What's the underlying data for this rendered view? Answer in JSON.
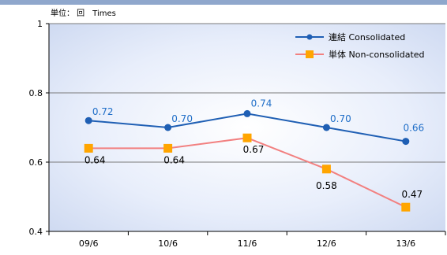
{
  "unit_label": "単位： 回　Times",
  "chart_data": {
    "type": "line",
    "categories": [
      "09/6",
      "10/6",
      "11/6",
      "12/6",
      "13/6"
    ],
    "series": [
      {
        "name": "連結 Consolidated",
        "values": [
          0.72,
          0.7,
          0.74,
          0.7,
          0.66
        ],
        "labels": [
          "0.72",
          "0.70",
          "0.74",
          "0.70",
          "0.66"
        ],
        "color": "#1f5fb4",
        "label_color": "#1f6ec8",
        "marker": "circle"
      },
      {
        "name": "単体 Non-consolidated",
        "values": [
          0.64,
          0.64,
          0.67,
          0.58,
          0.47
        ],
        "labels": [
          "0.64",
          "0.64",
          "0.67",
          "0.58",
          "0.47"
        ],
        "color": "#f28080",
        "label_color": "#000000",
        "marker": "square",
        "marker_color": "#ffa500"
      }
    ],
    "yticks": [
      "0.4",
      "0.6",
      "0.8",
      "1"
    ],
    "ylim": [
      0.4,
      1.0
    ],
    "grid": true,
    "legend": "top-right"
  }
}
